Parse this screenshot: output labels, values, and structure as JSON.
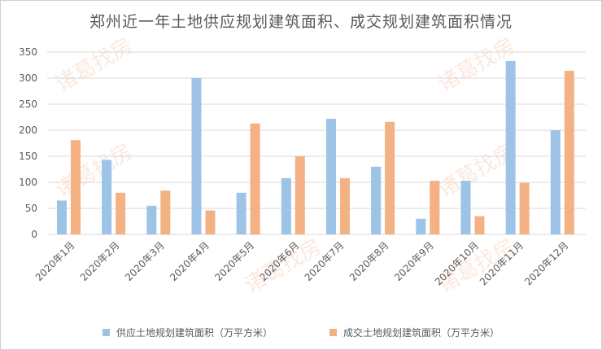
{
  "chart_data": {
    "type": "bar",
    "title": "郑州近一年土地供应规划建筑面积、成交规划建筑面积情况",
    "categories": [
      "2020年1月",
      "2020年2月",
      "2020年3月",
      "2020年4月",
      "2020年5月",
      "2020年6月",
      "2020年7月",
      "2020年8月",
      "2020年9月",
      "2020年10月",
      "2020年11月",
      "2020年12月"
    ],
    "series": [
      {
        "name": "供应土地规划建筑面积（万平方米）",
        "color": "#9dc3e6",
        "values": [
          65,
          143,
          55,
          300,
          80,
          108,
          222,
          130,
          30,
          103,
          333,
          200
        ]
      },
      {
        "name": "成交土地规划建筑面积（万平方米）",
        "color": "#f4b183",
        "values": [
          181,
          80,
          84,
          46,
          213,
          150,
          108,
          216,
          103,
          35,
          99,
          314
        ]
      }
    ],
    "ylim": [
      0,
      350
    ],
    "yticks": [
      0,
      50,
      100,
      150,
      200,
      250,
      300,
      350
    ],
    "grid": true,
    "legend_position": "bottom"
  },
  "watermark": "诸葛找房"
}
